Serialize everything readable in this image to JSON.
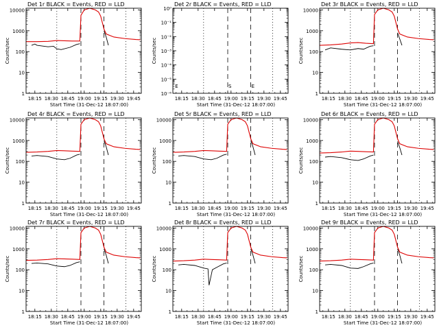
{
  "figure": {
    "background": "#ffffff",
    "axis_color": "#000000",
    "events_color": "#000000",
    "lld_color": "#dd0000"
  },
  "chart_data": [
    {
      "type": "line",
      "title": "Det 1r BLACK = Events, RED = LLD",
      "xlabel": "Start Time (31-Dec-12 18:07:00)",
      "ylabel": "Counts/sec",
      "x_tick_labels": [
        "18:15",
        "18:30",
        "18:45",
        "19:00",
        "19:15",
        "19:30",
        "19:45"
      ],
      "y_tick_labels": [
        "1",
        "10",
        "100",
        "1000",
        "10000"
      ],
      "ylim": [
        1,
        12000
      ],
      "y_scale": "log",
      "xlim_minutes": [
        0,
        105
      ],
      "grid": false,
      "vertical_markers": [
        {
          "style": "dotted",
          "x_minutes": 28
        },
        {
          "style": "dashed",
          "x_minutes": 50
        },
        {
          "style": "dashed",
          "x_minutes": 71
        },
        {
          "style": "dotted",
          "x_minutes": 91
        }
      ],
      "series": [
        {
          "color": "#dd0000",
          "x_minutes": [
            0,
            10,
            20,
            28,
            35,
            42,
            49,
            50,
            53,
            58,
            63,
            66,
            68,
            71,
            73,
            80,
            90,
            100,
            104
          ],
          "values": [
            300,
            300,
            310,
            340,
            330,
            320,
            320,
            5500,
            10000,
            12000,
            10000,
            8000,
            5000,
            1200,
            700,
            500,
            420,
            380,
            370
          ]
        },
        {
          "color": "#000000",
          "x_minutes": [
            5,
            8,
            10,
            20,
            25,
            28,
            32,
            40,
            46,
            49
          ],
          "values": [
            200,
            230,
            200,
            170,
            180,
            135,
            125,
            160,
            220,
            240
          ]
        },
        {
          "color": "#000000",
          "x_minutes": [
            71,
            73,
            75
          ],
          "values": [
            1000,
            500,
            200
          ]
        }
      ]
    },
    {
      "type": "line",
      "title": "Det 2r BLACK = Events, RED = LLD",
      "xlabel": "Start Time (31-Dec-12 18:07:00)",
      "ylabel": "Counts/sec",
      "x_tick_labels": [
        "18:15",
        "18:30",
        "18:45",
        "19:00",
        "19:15",
        "19:30",
        "19:45"
      ],
      "y_tick_labels": [
        "10⁰",
        "10⁻¹",
        "10⁻²",
        "10⁻³",
        "10⁻⁴",
        "10⁻⁵",
        "10⁻⁶"
      ],
      "ylim": [
        1e-06,
        1
      ],
      "y_scale": "log",
      "xlim_minutes": [
        0,
        105
      ],
      "grid": false,
      "marker_labels": [
        "E",
        "S",
        "E"
      ],
      "vertical_markers": [
        {
          "style": "dotted",
          "x_minutes": 28
        },
        {
          "style": "dashed",
          "x_minutes": 50
        },
        {
          "style": "dashed",
          "x_minutes": 71
        },
        {
          "style": "dotted",
          "x_minutes": 91
        }
      ],
      "series": []
    },
    {
      "type": "line",
      "title": "Det 3r BLACK = Events, RED = LLD",
      "xlabel": "Start Time (31-Dec-12 18:07:00)",
      "ylabel": "Counts/sec",
      "x_tick_labels": [
        "18:15",
        "18:30",
        "18:45",
        "19:00",
        "19:15",
        "19:30",
        "19:45"
      ],
      "y_tick_labels": [
        "1",
        "10",
        "100",
        "1000",
        "10000"
      ],
      "ylim": [
        1,
        12000
      ],
      "y_scale": "log",
      "xlim_minutes": [
        0,
        105
      ],
      "grid": false,
      "vertical_markers": [
        {
          "style": "dotted",
          "x_minutes": 28
        },
        {
          "style": "dashed",
          "x_minutes": 50
        },
        {
          "style": "dashed",
          "x_minutes": 71
        },
        {
          "style": "dotted",
          "x_minutes": 91
        }
      ],
      "series": [
        {
          "color": "#dd0000",
          "x_minutes": [
            0,
            10,
            20,
            28,
            35,
            42,
            49,
            50,
            53,
            58,
            63,
            66,
            68,
            71,
            73,
            80,
            90,
            100,
            104
          ],
          "values": [
            200,
            210,
            230,
            260,
            270,
            250,
            240,
            6000,
            10000,
            12000,
            10000,
            8000,
            5000,
            1200,
            700,
            500,
            420,
            380,
            370
          ]
        },
        {
          "color": "#000000",
          "x_minutes": [
            5,
            10,
            20,
            28,
            35,
            40,
            46,
            49
          ],
          "values": [
            120,
            150,
            130,
            120,
            140,
            130,
            180,
            190
          ]
        },
        {
          "color": "#000000",
          "x_minutes": [
            71,
            73,
            75
          ],
          "values": [
            800,
            400,
            200
          ]
        }
      ]
    },
    {
      "type": "line",
      "title": "Det 4r BLACK = Events, RED = LLD",
      "xlabel": "Start Time (31-Dec-12 18:07:00)",
      "ylabel": "Counts/sec",
      "x_tick_labels": [
        "18:15",
        "18:30",
        "18:45",
        "19:00",
        "19:15",
        "19:30",
        "19:45"
      ],
      "y_tick_labels": [
        "1",
        "10",
        "100",
        "1000",
        "10000"
      ],
      "ylim": [
        1,
        12000
      ],
      "y_scale": "log",
      "xlim_minutes": [
        0,
        105
      ],
      "grid": false,
      "vertical_markers": [
        {
          "style": "dotted",
          "x_minutes": 28
        },
        {
          "style": "dashed",
          "x_minutes": 50
        },
        {
          "style": "dashed",
          "x_minutes": 71
        },
        {
          "style": "dotted",
          "x_minutes": 91
        }
      ],
      "series": [
        {
          "color": "#dd0000",
          "x_minutes": [
            0,
            10,
            20,
            28,
            35,
            42,
            49,
            50,
            53,
            58,
            63,
            66,
            68,
            71,
            73,
            80,
            90,
            100,
            104
          ],
          "values": [
            270,
            280,
            300,
            330,
            320,
            310,
            300,
            6000,
            10000,
            12000,
            10000,
            8000,
            5000,
            1200,
            700,
            500,
            420,
            380,
            370
          ]
        },
        {
          "color": "#000000",
          "x_minutes": [
            5,
            10,
            20,
            28,
            35,
            40,
            46,
            49
          ],
          "values": [
            180,
            190,
            170,
            130,
            120,
            140,
            200,
            220
          ]
        },
        {
          "color": "#000000",
          "x_minutes": [
            71,
            73,
            75
          ],
          "values": [
            1000,
            500,
            200
          ]
        }
      ]
    },
    {
      "type": "line",
      "title": "Det 5r BLACK = Events, RED = LLD",
      "xlabel": "Start Time (31-Dec-12 18:07:00)",
      "ylabel": "Counts/sec",
      "x_tick_labels": [
        "18:15",
        "18:30",
        "18:45",
        "19:00",
        "19:15",
        "19:30",
        "19:45"
      ],
      "y_tick_labels": [
        "1",
        "10",
        "100",
        "1000",
        "10000"
      ],
      "ylim": [
        1,
        12000
      ],
      "y_scale": "log",
      "xlim_minutes": [
        0,
        105
      ],
      "grid": false,
      "vertical_markers": [
        {
          "style": "dotted",
          "x_minutes": 28
        },
        {
          "style": "dashed",
          "x_minutes": 50
        },
        {
          "style": "dashed",
          "x_minutes": 71
        },
        {
          "style": "dotted",
          "x_minutes": 91
        }
      ],
      "series": [
        {
          "color": "#dd0000",
          "x_minutes": [
            0,
            10,
            20,
            28,
            35,
            42,
            49,
            50,
            53,
            58,
            63,
            66,
            68,
            71,
            73,
            80,
            90,
            100,
            104
          ],
          "values": [
            270,
            280,
            300,
            330,
            320,
            310,
            300,
            6000,
            10000,
            12000,
            10000,
            8000,
            5000,
            1200,
            700,
            500,
            420,
            380,
            370
          ]
        },
        {
          "color": "#000000",
          "x_minutes": [
            5,
            10,
            20,
            28,
            35,
            40,
            46,
            49
          ],
          "values": [
            180,
            190,
            170,
            130,
            120,
            140,
            200,
            220
          ]
        },
        {
          "color": "#000000",
          "x_minutes": [
            71,
            73,
            75
          ],
          "values": [
            1000,
            500,
            200
          ]
        }
      ]
    },
    {
      "type": "line",
      "title": "Det 6r BLACK = Events, RED = LLD",
      "xlabel": "Start Time (31-Dec-12 18:07:00)",
      "ylabel": "Counts/sec",
      "x_tick_labels": [
        "18:15",
        "18:30",
        "18:45",
        "19:00",
        "19:15",
        "19:30",
        "19:45"
      ],
      "y_tick_labels": [
        "1",
        "10",
        "100",
        "1000",
        "10000"
      ],
      "ylim": [
        1,
        12000
      ],
      "y_scale": "log",
      "xlim_minutes": [
        0,
        105
      ],
      "grid": false,
      "vertical_markers": [
        {
          "style": "dotted",
          "x_minutes": 28
        },
        {
          "style": "dashed",
          "x_minutes": 50
        },
        {
          "style": "dashed",
          "x_minutes": 71
        },
        {
          "style": "dotted",
          "x_minutes": 91
        }
      ],
      "series": [
        {
          "color": "#dd0000",
          "x_minutes": [
            0,
            10,
            20,
            28,
            35,
            42,
            49,
            50,
            53,
            58,
            63,
            66,
            68,
            71,
            73,
            80,
            90,
            100,
            104
          ],
          "values": [
            250,
            260,
            280,
            310,
            300,
            290,
            280,
            6000,
            10000,
            12000,
            10000,
            8000,
            5000,
            1200,
            700,
            500,
            420,
            380,
            370
          ]
        },
        {
          "color": "#000000",
          "x_minutes": [
            5,
            10,
            20,
            28,
            35,
            40,
            46,
            49
          ],
          "values": [
            160,
            170,
            150,
            120,
            110,
            130,
            180,
            200
          ]
        },
        {
          "color": "#000000",
          "x_minutes": [
            71,
            73,
            75
          ],
          "values": [
            900,
            450,
            200
          ]
        }
      ]
    },
    {
      "type": "line",
      "title": "Det 7r BLACK = Events, RED = LLD",
      "xlabel": "Start Time (31-Dec-12 18:07:00)",
      "ylabel": "Counts/sec",
      "x_tick_labels": [
        "18:15",
        "18:30",
        "18:45",
        "19:00",
        "19:15",
        "19:30",
        "19:45"
      ],
      "y_tick_labels": [
        "1",
        "10",
        "100",
        "1000",
        "10000"
      ],
      "ylim": [
        1,
        12000
      ],
      "y_scale": "log",
      "xlim_minutes": [
        0,
        105
      ],
      "grid": false,
      "vertical_markers": [
        {
          "style": "dotted",
          "x_minutes": 28
        },
        {
          "style": "dashed",
          "x_minutes": 50
        },
        {
          "style": "dashed",
          "x_minutes": 71
        },
        {
          "style": "dotted",
          "x_minutes": 91
        }
      ],
      "series": [
        {
          "color": "#dd0000",
          "x_minutes": [
            0,
            10,
            20,
            28,
            35,
            42,
            49,
            50,
            53,
            58,
            63,
            66,
            68,
            71,
            73,
            80,
            90,
            100,
            104
          ],
          "values": [
            280,
            290,
            310,
            340,
            330,
            320,
            310,
            6000,
            10000,
            12000,
            10000,
            8000,
            5000,
            1200,
            700,
            500,
            420,
            380,
            370
          ]
        },
        {
          "color": "#000000",
          "x_minutes": [
            5,
            10,
            20,
            28,
            35,
            40,
            46,
            49
          ],
          "values": [
            200,
            210,
            190,
            150,
            140,
            160,
            220,
            240
          ]
        },
        {
          "color": "#000000",
          "x_minutes": [
            71,
            73,
            75
          ],
          "values": [
            1000,
            500,
            200
          ]
        }
      ]
    },
    {
      "type": "line",
      "title": "Det 8r BLACK = Events, RED = LLD",
      "xlabel": "Start Time (31-Dec-12 18:07:00)",
      "ylabel": "Counts/sec",
      "x_tick_labels": [
        "18:15",
        "18:30",
        "18:45",
        "19:00",
        "19:15",
        "19:30",
        "19:45"
      ],
      "y_tick_labels": [
        "1",
        "10",
        "100",
        "1000",
        "10000"
      ],
      "ylim": [
        1,
        12000
      ],
      "y_scale": "log",
      "xlim_minutes": [
        0,
        105
      ],
      "grid": false,
      "vertical_markers": [
        {
          "style": "dotted",
          "x_minutes": 28
        },
        {
          "style": "dashed",
          "x_minutes": 50
        },
        {
          "style": "dashed",
          "x_minutes": 71
        },
        {
          "style": "dotted",
          "x_minutes": 91
        }
      ],
      "series": [
        {
          "color": "#dd0000",
          "x_minutes": [
            0,
            10,
            20,
            28,
            35,
            42,
            49,
            50,
            53,
            58,
            63,
            66,
            68,
            71,
            73,
            80,
            90,
            100,
            104
          ],
          "values": [
            260,
            270,
            290,
            320,
            310,
            300,
            290,
            6000,
            10000,
            12000,
            10000,
            8000,
            5000,
            1200,
            700,
            500,
            420,
            380,
            370
          ]
        },
        {
          "color": "#000000",
          "x_minutes": [
            5,
            10,
            20,
            28,
            32,
            33,
            36,
            40,
            46,
            49
          ],
          "values": [
            170,
            180,
            160,
            120,
            110,
            18,
            100,
            130,
            190,
            210
          ]
        },
        {
          "color": "#000000",
          "x_minutes": [
            71,
            73,
            75
          ],
          "values": [
            1000,
            500,
            200
          ]
        }
      ]
    },
    {
      "type": "line",
      "title": "Det 9r BLACK = Events, RED = LLD",
      "xlabel": "Start Time (31-Dec-12 18:07:00)",
      "ylabel": "Counts/sec",
      "x_tick_labels": [
        "18:15",
        "18:30",
        "18:45",
        "19:00",
        "19:15",
        "19:30",
        "19:45"
      ],
      "y_tick_labels": [
        "1",
        "10",
        "100",
        "1000",
        "10000"
      ],
      "ylim": [
        1,
        12000
      ],
      "y_scale": "log",
      "xlim_minutes": [
        0,
        105
      ],
      "grid": false,
      "vertical_markers": [
        {
          "style": "dotted",
          "x_minutes": 28
        },
        {
          "style": "dashed",
          "x_minutes": 50
        },
        {
          "style": "dashed",
          "x_minutes": 71
        },
        {
          "style": "dotted",
          "x_minutes": 91
        }
      ],
      "series": [
        {
          "color": "#dd0000",
          "x_minutes": [
            0,
            10,
            20,
            28,
            35,
            42,
            49,
            50,
            53,
            58,
            63,
            66,
            68,
            71,
            73,
            80,
            90,
            100,
            104
          ],
          "values": [
            260,
            270,
            290,
            320,
            310,
            300,
            290,
            6000,
            10000,
            12000,
            10000,
            8000,
            5000,
            1200,
            700,
            500,
            420,
            380,
            370
          ]
        },
        {
          "color": "#000000",
          "x_minutes": [
            5,
            10,
            20,
            28,
            35,
            40,
            46,
            49
          ],
          "values": [
            170,
            180,
            160,
            120,
            115,
            140,
            190,
            210
          ]
        },
        {
          "color": "#000000",
          "x_minutes": [
            71,
            73,
            75
          ],
          "values": [
            1000,
            500,
            200
          ]
        }
      ]
    }
  ]
}
